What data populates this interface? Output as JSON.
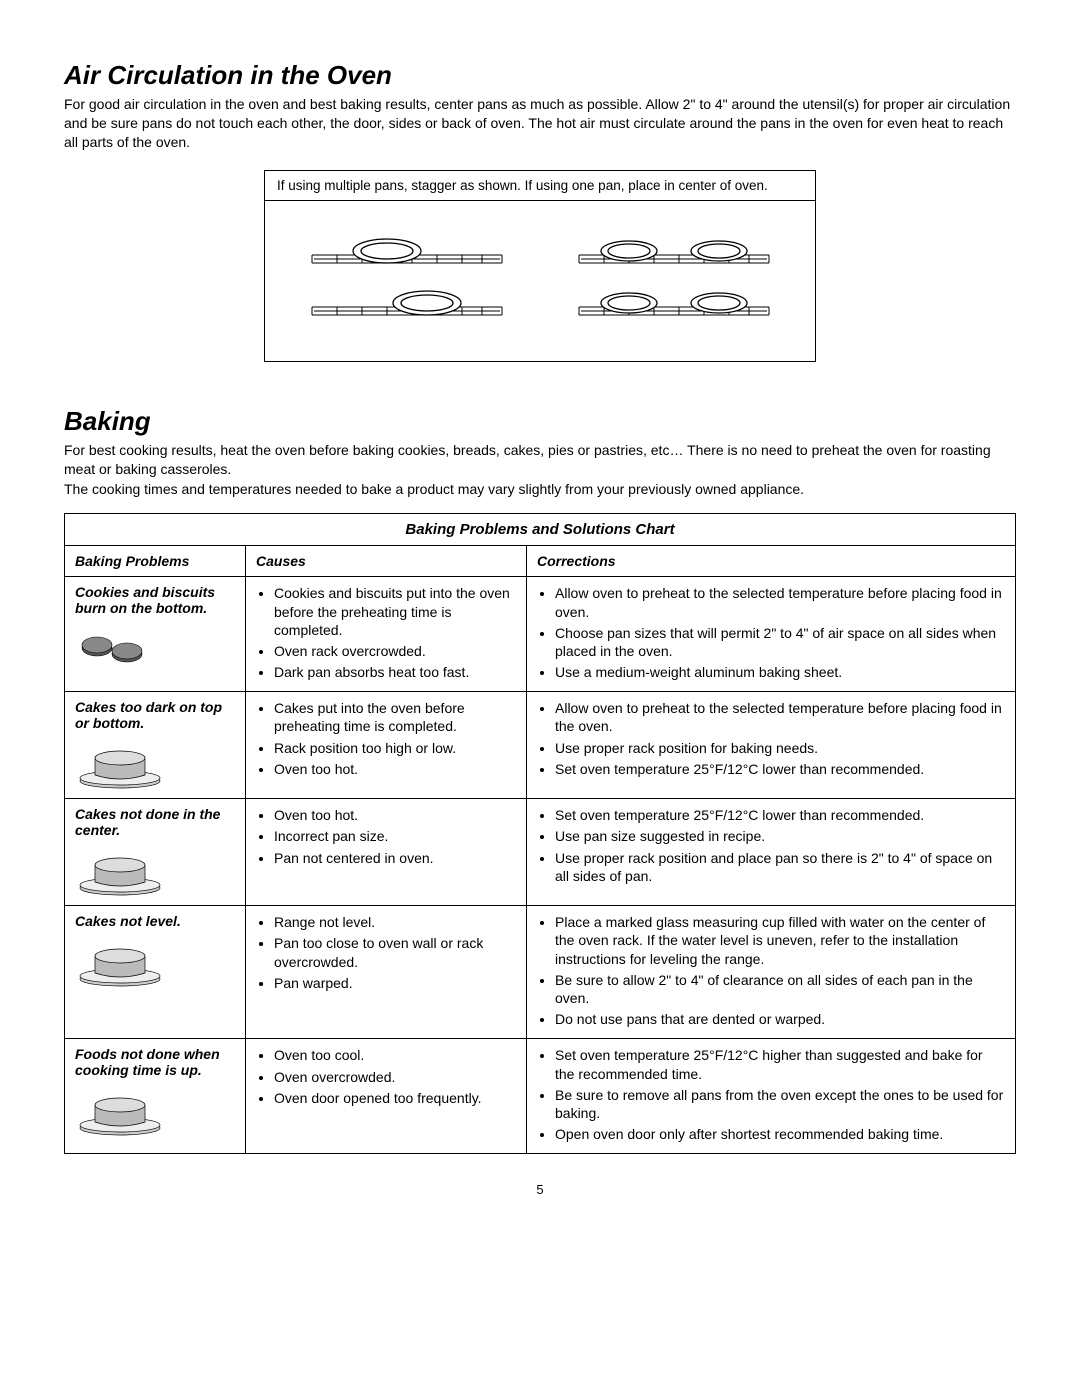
{
  "section1": {
    "title": "Air Circulation in the Oven",
    "para": "For good air circulation in the oven and best baking results, center pans as much as possible. Allow 2\" to 4\" around the utensil(s) for proper air circulation and be sure pans do not touch each other, the door, sides or back of oven. The hot air must circulate around the pans in the oven for even heat to reach all parts of the oven.",
    "caption": "If using multiple pans, stagger as shown.  If using one pan, place in center of oven."
  },
  "section2": {
    "title": "Baking",
    "para1": "For best cooking results, heat the oven before baking cookies, breads, cakes, pies or pastries, etc…  There is no need to preheat the oven for roasting meat or baking casseroles.",
    "para2": "The cooking times and temperatures needed to bake a product may vary slightly from your previously owned appliance."
  },
  "chart": {
    "title": "Baking Problems and Solutions Chart",
    "headers": {
      "problems": "Baking Problems",
      "causes": "Causes",
      "corrections": "Corrections"
    },
    "rows": [
      {
        "problem": "Cookies and biscuits burn on the bottom.",
        "icon": "cookies",
        "causes": [
          "Cookies and biscuits put into the oven before the preheating time is completed.",
          "Oven rack overcrowded.",
          "Dark pan absorbs heat too fast."
        ],
        "corrections": [
          "Allow oven to preheat to the selected temperature before placing food in oven.",
          "Choose pan sizes that will permit 2\" to 4\" of air space on all sides when placed in the oven.",
          "Use a medium-weight aluminum baking sheet."
        ]
      },
      {
        "problem": "Cakes too dark on top or bottom.",
        "icon": "cake",
        "causes": [
          "Cakes put into the oven before preheating time is completed.",
          "Rack position too high or low.",
          "Oven too hot."
        ],
        "corrections": [
          "Allow oven to preheat to the selected temperature before placing food in the oven.",
          "Use proper rack position for baking needs.",
          "Set oven temperature 25°F/12°C lower than recommended."
        ]
      },
      {
        "problem": "Cakes not done in the center.",
        "icon": "cake",
        "causes": [
          "Oven too hot.",
          "Incorrect pan size.",
          "Pan not centered in oven."
        ],
        "corrections": [
          "Set oven temperature 25°F/12°C lower than recommended.",
          "Use pan size suggested in recipe.",
          "Use proper rack position and place pan so there is 2\" to 4\" of space on all sides of pan."
        ]
      },
      {
        "problem": "Cakes not level.",
        "icon": "cake",
        "causes": [
          "Range not level.",
          "Pan too close to oven wall or rack overcrowded.",
          "Pan warped."
        ],
        "corrections": [
          "Place a marked glass measuring cup filled with water on the center of the oven rack.  If the water level is uneven, refer to the installation instructions for leveling the range.",
          "Be sure to allow  2\" to 4\" of clearance on all sides of each pan in the oven.",
          "Do not use pans that are dented or warped."
        ]
      },
      {
        "problem": "Foods not done when cooking time is up.",
        "icon": "cake",
        "causes": [
          "Oven too cool.",
          "Oven overcrowded.",
          "Oven door opened too frequently."
        ],
        "corrections": [
          "Set oven temperature 25°F/12°C higher than suggested and bake for the recommended time.",
          "Be sure to remove all pans from the oven except the ones to be used for baking.",
          "Open oven door only after shortest recommended baking time."
        ]
      }
    ]
  },
  "page_number": "5"
}
